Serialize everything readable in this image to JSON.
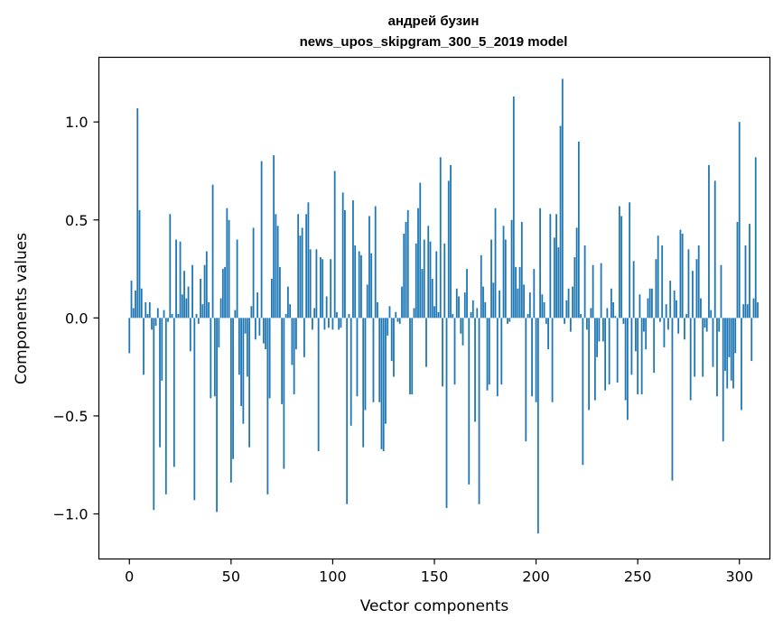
{
  "chart_data": {
    "type": "bar",
    "title": "андрей бузин",
    "subtitle": "news_upos_skipgram_300_5_2019 model",
    "xlabel": "Vector components",
    "ylabel": "Components values",
    "xlim": [
      -15,
      315
    ],
    "ylim": [
      -1.23,
      1.33
    ],
    "xticks": [
      0,
      50,
      100,
      150,
      200,
      250,
      300
    ],
    "xtick_labels": [
      "0",
      "50",
      "100",
      "150",
      "200",
      "250",
      "300"
    ],
    "yticks": [
      -1.0,
      -0.5,
      0.0,
      0.5,
      1.0
    ],
    "ytick_labels": [
      "−1.0",
      "−0.5",
      "0.0",
      "0.5",
      "1.0"
    ],
    "grid": false,
    "bar_color": "#1f77b4",
    "series": [
      {
        "values": [
          -0.18,
          0.19,
          0.05,
          0.14,
          1.07,
          0.55,
          0.15,
          -0.29,
          0.08,
          0.02,
          0.08,
          -0.06,
          -0.98,
          -0.04,
          0.05,
          -0.66,
          -0.32,
          0.04,
          -0.9,
          -0.02,
          0.53,
          0.02,
          -0.76,
          0.4,
          0.02,
          0.39,
          0.12,
          0.24,
          0.1,
          0.16,
          -0.17,
          0.27,
          -0.93,
          0.02,
          -0.03,
          0.2,
          0.07,
          0.27,
          0.34,
          0.08,
          -0.41,
          0.68,
          -0.4,
          -0.99,
          -0.15,
          0.1,
          0.25,
          0.26,
          0.56,
          0.5,
          -0.84,
          -0.72,
          0.04,
          0.4,
          -0.29,
          -0.45,
          -0.54,
          -0.08,
          -0.3,
          -0.66,
          0.06,
          0.46,
          -0.11,
          0.13,
          -0.09,
          0.8,
          -0.13,
          -0.16,
          -0.9,
          -0.41,
          0.2,
          0.83,
          0.53,
          0.47,
          0.26,
          -0.44,
          -0.77,
          0.02,
          0.16,
          0.07,
          -0.24,
          -0.39,
          -0.16,
          0.53,
          0.42,
          0.46,
          -0.2,
          0.53,
          0.59,
          0.35,
          -0.06,
          0.05,
          0.35,
          -0.68,
          0.31,
          0.3,
          -0.06,
          0.11,
          -0.05,
          0.3,
          -0.06,
          0.75,
          0.03,
          -0.06,
          -0.05,
          0.64,
          0.55,
          -0.95,
          0.02,
          -0.55,
          0.6,
          0.37,
          -0.4,
          0.34,
          0.32,
          -0.66,
          -0.47,
          0.17,
          0.52,
          0.33,
          -0.43,
          0.57,
          0.08,
          -0.43,
          -0.67,
          -0.68,
          -0.54,
          -0.09,
          0.06,
          -0.22,
          -0.3,
          0.03,
          -0.02,
          -0.03,
          0.16,
          0.43,
          0.49,
          0.55,
          -0.39,
          -0.39,
          0.05,
          0.38,
          0.56,
          0.69,
          0.25,
          0.4,
          -0.25,
          0.47,
          0.39,
          0.2,
          0.06,
          0.34,
          0.03,
          0.82,
          -0.35,
          0.38,
          -0.97,
          0.7,
          0.78,
          0.02,
          -0.34,
          0.15,
          0.11,
          -0.08,
          -0.14,
          0.13,
          0.25,
          -0.85,
          0.03,
          0.09,
          -0.53,
          0.05,
          -0.95,
          0.32,
          0.16,
          0.08,
          -0.37,
          -0.34,
          0.4,
          0.18,
          0.56,
          -0.4,
          0.14,
          -0.34,
          0.47,
          0.4,
          -0.03,
          -0.02,
          0.5,
          1.13,
          0.26,
          0.15,
          0.26,
          0.49,
          0.17,
          -0.63,
          0.02,
          0.13,
          -0.4,
          0.25,
          -0.43,
          -1.1,
          0.56,
          0.12,
          0.08,
          -0.03,
          -0.16,
          0.53,
          -0.43,
          0.41,
          0.53,
          0.36,
          0.98,
          1.22,
          -0.03,
          0.09,
          0.15,
          -0.07,
          0.16,
          0.31,
          0.46,
          0.9,
          0.02,
          -0.75,
          0.37,
          -0.06,
          -0.47,
          0.05,
          0.27,
          -0.42,
          -0.2,
          -0.12,
          0.28,
          -0.12,
          -0.37,
          0.05,
          -0.34,
          0.15,
          0.08,
          0.01,
          -0.33,
          0.57,
          0.52,
          -0.03,
          -0.42,
          -0.52,
          0.59,
          -0.29,
          0.29,
          -0.17,
          -0.39,
          0.12,
          -0.39,
          -0.07,
          -0.16,
          0.1,
          0.15,
          0.15,
          -0.28,
          0.3,
          0.42,
          -0.02,
          0.37,
          -0.15,
          0.07,
          -0.06,
          0.19,
          -0.83,
          0.14,
          0.09,
          -0.08,
          0.45,
          0.43,
          -0.11,
          0.02,
          0.35,
          -0.42,
          0.24,
          -0.3,
          0.3,
          0.37,
          0.1,
          -0.3,
          -0.05,
          -0.07,
          0.78,
          0.04,
          -0.25,
          0.7,
          -0.4,
          -0.07,
          0.27,
          -0.63,
          -0.27,
          -0.36,
          -0.2,
          -0.32,
          -0.36,
          -0.18,
          0.49,
          1.0,
          -0.47,
          0.07,
          0.37,
          0.07,
          0.48,
          -0.22,
          0.1,
          0.82,
          0.08
        ]
      }
    ]
  }
}
